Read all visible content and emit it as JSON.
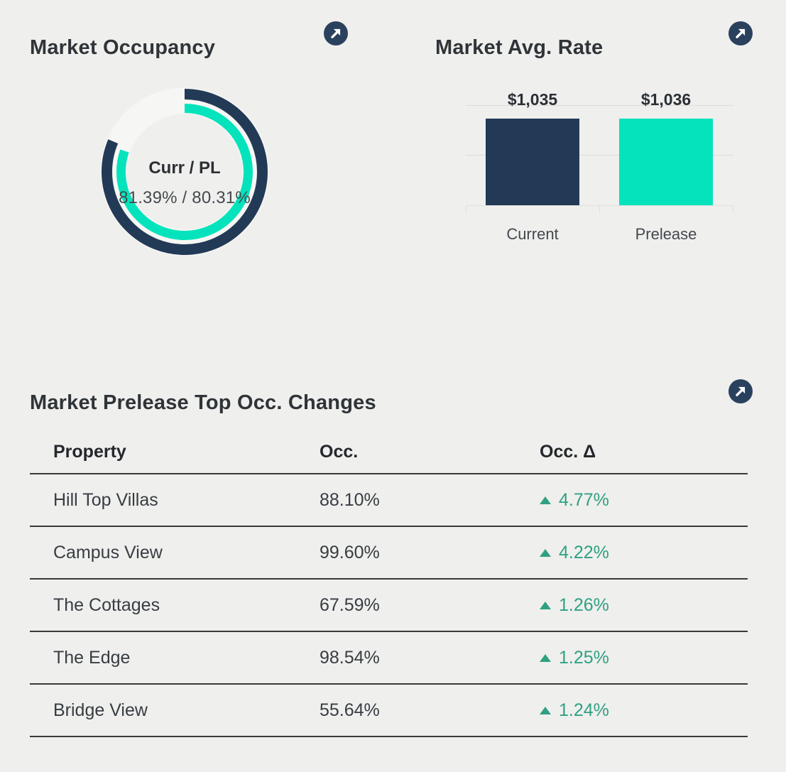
{
  "theme": {
    "background": "#EFEFED",
    "navy": "#233A57",
    "teal": "#04E3BC",
    "green": "#2FA183",
    "icon_circle": "#2A415E",
    "track": "#F6F7F4"
  },
  "occupancy": {
    "title": "Market Occupancy",
    "center_label": "Curr / PL",
    "center_value": "81.39% / 80.31%"
  },
  "avg_rate": {
    "title": "Market Avg. Rate",
    "bars": [
      {
        "label": "Current",
        "value_label": "$1,035",
        "value": 1035
      },
      {
        "label": "Prelease",
        "value_label": "$1,036",
        "value": 1036
      }
    ]
  },
  "table_section": {
    "title": "Market Prelease Top Occ. Changes",
    "columns": [
      "Property",
      "Occ.",
      "Occ. Δ"
    ],
    "rows": [
      {
        "property": "Hill Top Villas",
        "occ": "88.10%",
        "delta": "4.77%",
        "direction": "up"
      },
      {
        "property": "Campus View",
        "occ": "99.60%",
        "delta": "4.22%",
        "direction": "up"
      },
      {
        "property": "The Cottages",
        "occ": "67.59%",
        "delta": "1.26%",
        "direction": "up"
      },
      {
        "property": "The Edge",
        "occ": "98.54%",
        "delta": "1.25%",
        "direction": "up"
      },
      {
        "property": "Bridge View",
        "occ": "55.64%",
        "delta": "1.24%",
        "direction": "up"
      }
    ]
  },
  "chart_data": [
    {
      "type": "donut",
      "title": "Market Occupancy",
      "series": [
        {
          "name": "Curr",
          "value": 81.39,
          "color": "#233A57"
        },
        {
          "name": "PL",
          "value": 80.31,
          "color": "#04E3BC"
        }
      ],
      "unit": "%",
      "center_label": "Curr / PL",
      "center_value": "81.39% / 80.31%",
      "start_angle": "top",
      "direction": "clockwise"
    },
    {
      "type": "bar",
      "title": "Market Avg. Rate",
      "categories": [
        "Current",
        "Prelease"
      ],
      "values": [
        1035,
        1036
      ],
      "data_labels": [
        "$1,035",
        "$1,036"
      ],
      "colors": [
        "#233A57",
        "#04E3BC"
      ],
      "ylim": [
        0,
        1200
      ],
      "grid": true,
      "legend": false
    },
    {
      "type": "table",
      "title": "Market Prelease Top Occ. Changes",
      "columns": [
        "Property",
        "Occ.",
        "Occ. Δ"
      ],
      "rows": [
        [
          "Hill Top Villas",
          "88.10%",
          "+4.77%"
        ],
        [
          "Campus View",
          "99.60%",
          "+4.22%"
        ],
        [
          "The Cottages",
          "67.59%",
          "+1.26%"
        ],
        [
          "The Edge",
          "98.54%",
          "+1.25%"
        ],
        [
          "Bridge View",
          "55.64%",
          "+1.24%"
        ]
      ]
    }
  ]
}
